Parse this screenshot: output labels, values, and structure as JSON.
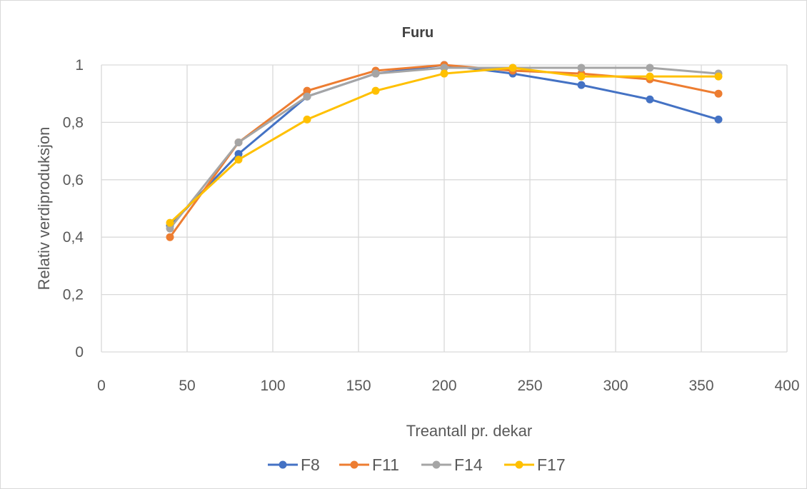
{
  "chart_data": {
    "type": "line",
    "title": "Furu",
    "xlabel": "Treantall pr. dekar",
    "ylabel": "Relativ verdiproduksjon",
    "xlim": [
      0,
      400
    ],
    "ylim": [
      0,
      1
    ],
    "x_ticks": [
      0,
      50,
      100,
      150,
      200,
      250,
      300,
      350,
      400
    ],
    "y_ticks": [
      0,
      0.2,
      0.4,
      0.6,
      0.8,
      1
    ],
    "y_tick_labels": [
      "0",
      "0,2",
      "0,4",
      "0,6",
      "0,8",
      "1"
    ],
    "grid": true,
    "legend_position": "bottom",
    "x": [
      40,
      80,
      120,
      160,
      200,
      240,
      280,
      320,
      360
    ],
    "series": [
      {
        "name": "F8",
        "color": "#4472C4",
        "values": [
          0.44,
          0.69,
          0.89,
          0.97,
          1.0,
          0.97,
          0.93,
          0.88,
          0.81
        ]
      },
      {
        "name": "F11",
        "color": "#ED7D31",
        "values": [
          0.4,
          0.73,
          0.91,
          0.98,
          1.0,
          0.98,
          0.97,
          0.95,
          0.9
        ]
      },
      {
        "name": "F14",
        "color": "#A5A5A5",
        "values": [
          0.43,
          0.73,
          0.89,
          0.97,
          0.99,
          0.99,
          0.99,
          0.99,
          0.97
        ]
      },
      {
        "name": "F17",
        "color": "#FFC000",
        "values": [
          0.45,
          0.67,
          0.81,
          0.91,
          0.97,
          0.99,
          0.96,
          0.96,
          0.96
        ]
      }
    ]
  }
}
